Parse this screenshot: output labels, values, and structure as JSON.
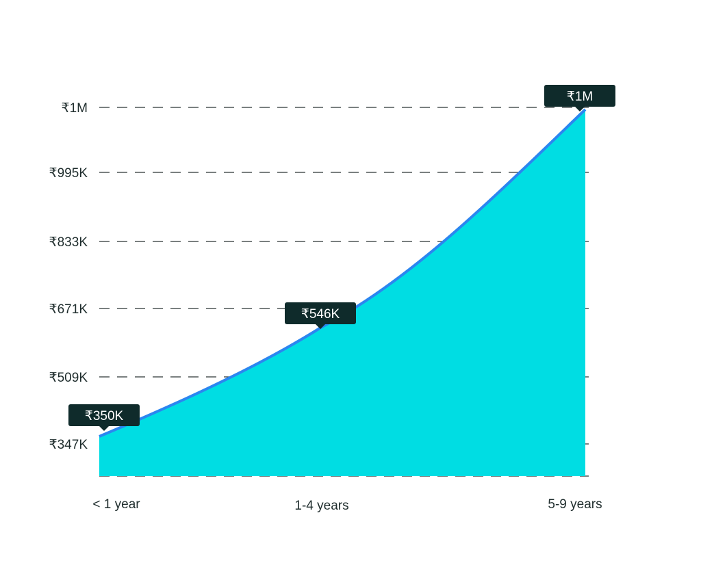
{
  "chart_data": {
    "type": "area",
    "x": [
      "< 1 year",
      "1-4 years",
      "5-9 years"
    ],
    "series": [
      {
        "values": [
          350,
          546,
          1000
        ]
      }
    ],
    "y_ticks": [
      "₹1M",
      "₹995K",
      "₹833K",
      "₹671K",
      "₹509K",
      "₹347K"
    ],
    "data_labels": [
      "₹350K",
      "₹546K",
      "₹1M"
    ],
    "colors": {
      "fill": "#00dde3",
      "line": "#2b86f0",
      "label_bg": "#0f2b2b",
      "label_text": "#ffffff"
    },
    "grid": true,
    "legend": "none"
  }
}
